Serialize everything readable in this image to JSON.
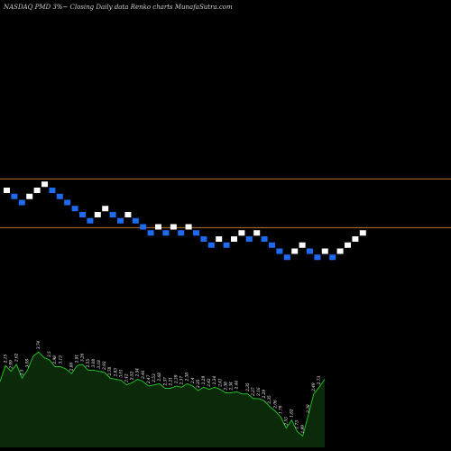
{
  "header": {
    "title": "NASDAQ PMD 3%~  Closing Daily data  Renko  charts MunafaSutra.com"
  },
  "colors": {
    "background": "#000000",
    "up_brick": "#ffffff",
    "down_brick": "#1e6bf0",
    "level_line": "#b8742b",
    "volume_fill": "#0a2a0a",
    "volume_line": "#1fbf1f"
  },
  "chart_data": {
    "type": "renko",
    "box_size_percent": 3,
    "bricks": [
      {
        "dir": "up",
        "level": 0
      },
      {
        "dir": "down",
        "level": -1
      },
      {
        "dir": "down",
        "level": -2
      },
      {
        "dir": "up",
        "level": -1
      },
      {
        "dir": "up",
        "level": 0
      },
      {
        "dir": "up",
        "level": 1
      },
      {
        "dir": "down",
        "level": 0
      },
      {
        "dir": "down",
        "level": -1
      },
      {
        "dir": "down",
        "level": -2
      },
      {
        "dir": "down",
        "level": -3
      },
      {
        "dir": "down",
        "level": -4
      },
      {
        "dir": "down",
        "level": -5
      },
      {
        "dir": "up",
        "level": -4
      },
      {
        "dir": "up",
        "level": -3
      },
      {
        "dir": "down",
        "level": -4
      },
      {
        "dir": "down",
        "level": -5
      },
      {
        "dir": "up",
        "level": -4
      },
      {
        "dir": "down",
        "level": -5
      },
      {
        "dir": "down",
        "level": -6
      },
      {
        "dir": "down",
        "level": -7
      },
      {
        "dir": "up",
        "level": -6
      },
      {
        "dir": "down",
        "level": -7
      },
      {
        "dir": "up",
        "level": -6
      },
      {
        "dir": "down",
        "level": -7
      },
      {
        "dir": "up",
        "level": -6
      },
      {
        "dir": "down",
        "level": -7
      },
      {
        "dir": "down",
        "level": -8
      },
      {
        "dir": "down",
        "level": -9
      },
      {
        "dir": "up",
        "level": -8
      },
      {
        "dir": "down",
        "level": -9
      },
      {
        "dir": "up",
        "level": -8
      },
      {
        "dir": "up",
        "level": -7
      },
      {
        "dir": "down",
        "level": -8
      },
      {
        "dir": "up",
        "level": -7
      },
      {
        "dir": "down",
        "level": -8
      },
      {
        "dir": "down",
        "level": -9
      },
      {
        "dir": "down",
        "level": -10
      },
      {
        "dir": "down",
        "level": -11
      },
      {
        "dir": "up",
        "level": -10
      },
      {
        "dir": "up",
        "level": -9
      },
      {
        "dir": "down",
        "level": -10
      },
      {
        "dir": "down",
        "level": -11
      },
      {
        "dir": "up",
        "level": -10
      },
      {
        "dir": "down",
        "level": -11
      },
      {
        "dir": "up",
        "level": -10
      },
      {
        "dir": "up",
        "level": -9
      },
      {
        "dir": "up",
        "level": -8
      },
      {
        "dir": "up",
        "level": -7
      }
    ],
    "reference_lines": [
      1.5,
      -6.5
    ],
    "volume": {
      "values": [
        58,
        72,
        67,
        73,
        61,
        68,
        80,
        84,
        79,
        77,
        71,
        71,
        69,
        65,
        72,
        73,
        68,
        68,
        67,
        66,
        61,
        60,
        59,
        55,
        57,
        60,
        58,
        54,
        55,
        56,
        52,
        52,
        54,
        53,
        56,
        54,
        50,
        53,
        51,
        53,
        51,
        48,
        48,
        49,
        47,
        47,
        43,
        43,
        41,
        36,
        32,
        27,
        17,
        24,
        14,
        10,
        28,
        47,
        53,
        60
      ],
      "labels": [
        "",
        "2.15",
        "2.99",
        "2.62",
        "2.5",
        "3.08",
        "",
        "3.74",
        "",
        "3.5",
        "2.98",
        "3.13",
        "",
        "2.86",
        "2.91",
        "3.26",
        "2.55",
        "3.08",
        "3.18",
        "2.93",
        "2.78",
        "2.83",
        "3.01",
        "2.42",
        "2.52",
        "2.54",
        "2.46",
        "2.47",
        "2.53",
        "2.68",
        "2.37",
        "2.21",
        "2.39",
        "2.37",
        "2.38",
        "2.4",
        "2.35",
        "2.29",
        "2.42",
        "2.34",
        "2.41",
        "2.38",
        "2.34",
        "2.44",
        "",
        "2.35",
        "2.27",
        "2.16",
        "2.29",
        "2.35",
        "2.06",
        "1.79",
        "2.53",
        "1.62",
        "1.73",
        "1.99",
        "2.38",
        "2.49",
        "2.73",
        ""
      ]
    }
  }
}
